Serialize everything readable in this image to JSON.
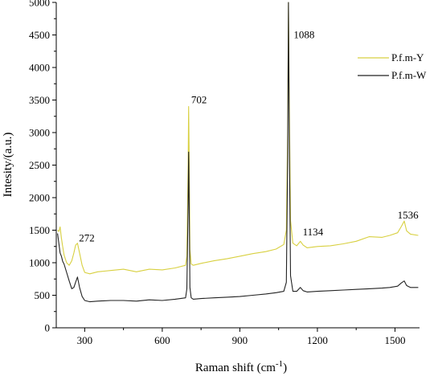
{
  "chart_data": {
    "type": "line",
    "xlabel": "Raman shift (cm",
    "xlabel_sup": "-1",
    "xlabel_close": ")",
    "ylabel": "Intesity/(a.u.)",
    "xlim": [
      190,
      1595
    ],
    "ylim": [
      0,
      5000
    ],
    "x_ticks": [
      300,
      600,
      900,
      1200,
      1500
    ],
    "y_ticks": [
      0,
      500,
      1000,
      1500,
      2000,
      2500,
      3000,
      3500,
      4000,
      4500,
      5000
    ],
    "grid": false,
    "legend_position": "top-right",
    "annotations": [
      {
        "text": "272",
        "x": 278,
        "y": 1330
      },
      {
        "text": "702",
        "x": 712,
        "y": 3450
      },
      {
        "text": "1088",
        "x": 1108,
        "y": 4450
      },
      {
        "text": "1134",
        "x": 1143,
        "y": 1420
      },
      {
        "text": "1536",
        "x": 1510,
        "y": 1680
      }
    ],
    "series": [
      {
        "name": "P.f.m-Y",
        "color": "#d8d040",
        "x": [
          195,
          200,
          205,
          210,
          215,
          220,
          230,
          240,
          250,
          258,
          265,
          272,
          280,
          290,
          300,
          320,
          350,
          400,
          450,
          500,
          550,
          600,
          650,
          690,
          695,
          700,
          702,
          704,
          707,
          712,
          720,
          750,
          800,
          850,
          900,
          950,
          1000,
          1040,
          1070,
          1080,
          1085,
          1088,
          1091,
          1096,
          1105,
          1120,
          1134,
          1145,
          1160,
          1200,
          1250,
          1300,
          1350,
          1400,
          1450,
          1480,
          1510,
          1525,
          1536,
          1545,
          1560,
          1590
        ],
        "values": [
          1500,
          1480,
          1550,
          1380,
          1250,
          1120,
          1000,
          960,
          1030,
          1150,
          1270,
          1300,
          1150,
          960,
          850,
          830,
          860,
          880,
          900,
          860,
          900,
          890,
          920,
          960,
          1100,
          2500,
          3400,
          2600,
          1200,
          980,
          960,
          990,
          1030,
          1060,
          1100,
          1140,
          1170,
          1210,
          1280,
          1500,
          3000,
          5000,
          3500,
          1650,
          1300,
          1260,
          1330,
          1270,
          1230,
          1250,
          1260,
          1290,
          1330,
          1400,
          1390,
          1420,
          1460,
          1560,
          1640,
          1490,
          1440,
          1420
        ]
      },
      {
        "name": "P.f.m-W",
        "color": "#222222",
        "x": [
          195,
          200,
          205,
          210,
          215,
          220,
          230,
          240,
          250,
          258,
          265,
          272,
          280,
          290,
          300,
          320,
          350,
          400,
          450,
          500,
          550,
          600,
          650,
          690,
          695,
          700,
          702,
          704,
          707,
          712,
          720,
          750,
          800,
          850,
          900,
          950,
          1000,
          1040,
          1070,
          1080,
          1085,
          1088,
          1091,
          1096,
          1105,
          1120,
          1134,
          1145,
          1160,
          1200,
          1250,
          1300,
          1350,
          1400,
          1450,
          1480,
          1510,
          1525,
          1536,
          1545,
          1560,
          1590
        ],
        "values": [
          1450,
          1300,
          1150,
          1100,
          1020,
          980,
          850,
          720,
          600,
          620,
          700,
          780,
          620,
          480,
          420,
          400,
          410,
          420,
          420,
          410,
          430,
          420,
          440,
          460,
          600,
          1900,
          2700,
          1900,
          620,
          460,
          440,
          450,
          460,
          470,
          480,
          500,
          520,
          540,
          560,
          700,
          2600,
          5000,
          3000,
          800,
          560,
          560,
          620,
          570,
          550,
          560,
          570,
          580,
          590,
          600,
          610,
          620,
          640,
          690,
          720,
          650,
          620,
          620
        ]
      }
    ]
  }
}
